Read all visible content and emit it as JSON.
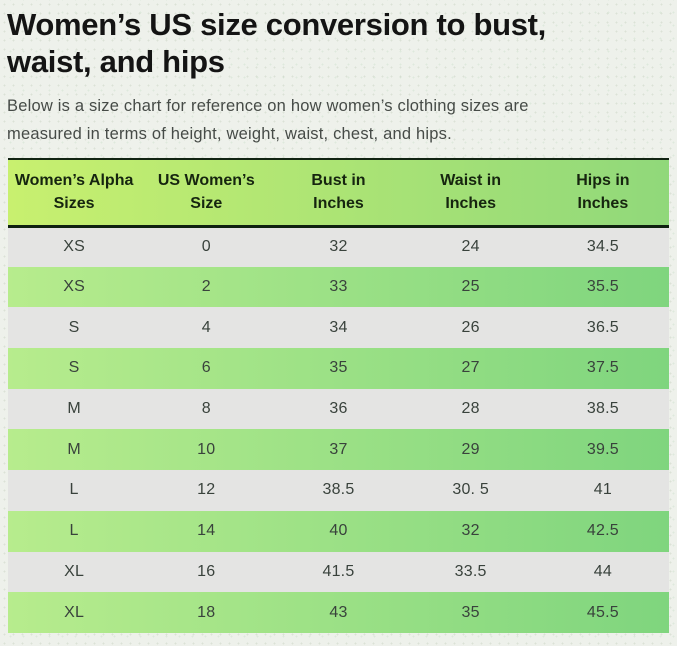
{
  "heading": {
    "lines": [
      "Women’s US size conversion to bust,",
      "waist, and hips"
    ]
  },
  "intro": {
    "lines": [
      "Below is a size chart for reference on how women’s clothing sizes are",
      "measured in terms of height, weight, waist, chest, and hips."
    ]
  },
  "table": {
    "columns": [
      {
        "line1": "Women’s Alpha",
        "line2": "Sizes"
      },
      {
        "line1": "US Women’s",
        "line2": "Size"
      },
      {
        "line1": "Bust in",
        "line2": "Inches"
      },
      {
        "line1": "Waist in",
        "line2": "Inches"
      },
      {
        "line1": "Hips in",
        "line2": "Inches"
      }
    ],
    "rows": [
      [
        "XS",
        "0",
        "32",
        "24",
        "34.5"
      ],
      [
        "XS",
        "2",
        "33",
        "25",
        "35.5"
      ],
      [
        "S",
        "4",
        "34",
        "26",
        "36.5"
      ],
      [
        "S",
        "6",
        "35",
        "27",
        "37.5"
      ],
      [
        "M",
        "8",
        "36",
        "28",
        "38.5"
      ],
      [
        "M",
        "10",
        "37",
        "29",
        "39.5"
      ],
      [
        "L",
        "12",
        "38.5",
        "30. 5",
        "41"
      ],
      [
        "L",
        "14",
        "40",
        "32",
        "42.5"
      ],
      [
        "XL",
        "16",
        "41.5",
        "33.5",
        "44"
      ],
      [
        "XL",
        "18",
        "43",
        "35",
        "45.5"
      ]
    ]
  },
  "colors": {
    "page_background": "#eef1eb",
    "header_gradient_left": "#c8f06f",
    "header_gradient_right": "#90d87a",
    "row_green_gradient_left": "#b7ec8d",
    "row_green_gradient_right": "#7fd57e",
    "row_gray": "#e4e4e3",
    "border_dark": "#0f2110",
    "heading_text": "#141414",
    "body_text": "#464b47",
    "cell_text": "#39423c"
  }
}
